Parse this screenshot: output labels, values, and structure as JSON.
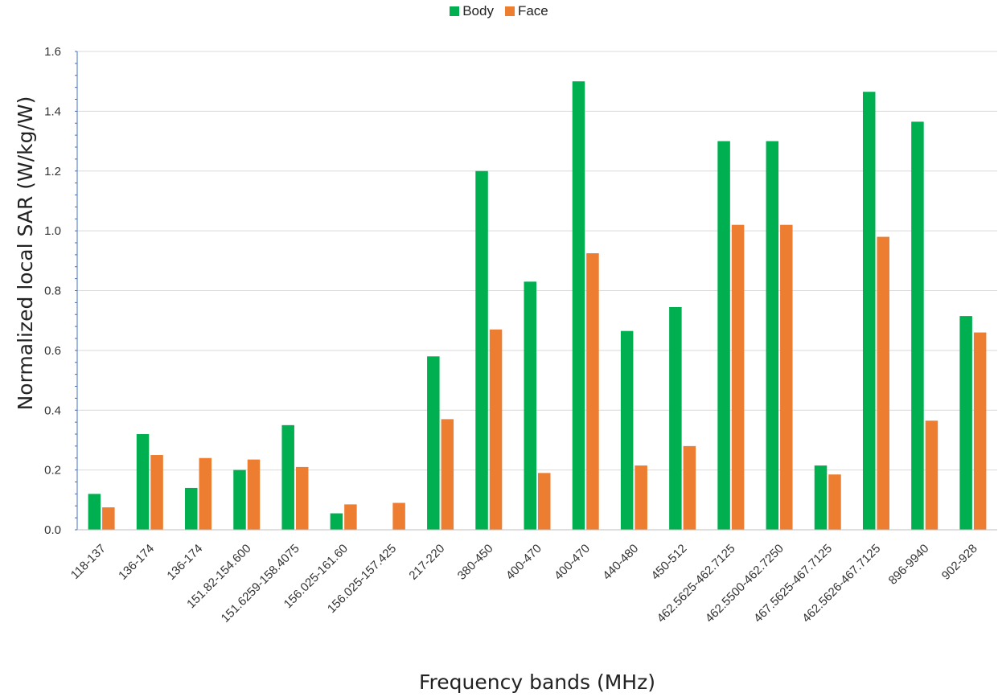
{
  "chart_data": {
    "type": "bar",
    "title": "",
    "xlabel": "Frequency bands (MHz)",
    "ylabel": "Normalized local SAR (W/kg/W)",
    "ylim": [
      0,
      1.6
    ],
    "yticks": [
      "0.0",
      "0.2",
      "0.4",
      "0.6",
      "0.8",
      "1.0",
      "1.2",
      "1.4",
      "1.6"
    ],
    "grid": true,
    "legend_position": "top-center",
    "categories": [
      "118-137",
      "136-174",
      "136-174",
      "151.82-154.600",
      "151.6259-158.4075",
      "156.025-161.60",
      "156.025-157.425",
      "217-220",
      "380-450",
      "400-470",
      "400-470",
      "440-480",
      "450-512",
      "462.5625-462.7125",
      "462.5500-462.7250",
      "467.5625-467.7125",
      "462.5626-467.7125",
      "896-9940",
      "902-928"
    ],
    "series": [
      {
        "name": "Body",
        "color": "#00b050",
        "values": [
          0.12,
          0.32,
          0.14,
          0.2,
          0.35,
          0.055,
          0.0,
          0.58,
          1.2,
          0.83,
          1.5,
          0.665,
          0.745,
          1.3,
          1.3,
          0.215,
          1.465,
          1.365,
          0.715
        ]
      },
      {
        "name": "Face",
        "color": "#ed7d31",
        "values": [
          0.075,
          0.25,
          0.24,
          0.235,
          0.21,
          0.085,
          0.09,
          0.37,
          0.67,
          0.19,
          0.925,
          0.215,
          0.28,
          1.02,
          1.02,
          0.185,
          0.98,
          0.365,
          0.66
        ]
      }
    ]
  }
}
